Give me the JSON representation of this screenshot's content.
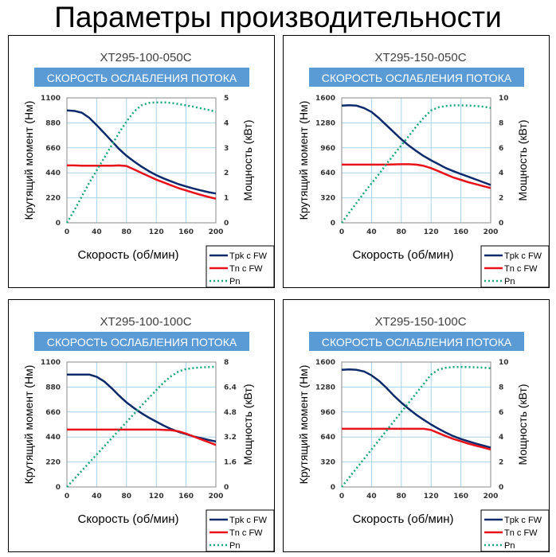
{
  "page_title": "Параметры производительности",
  "colors": {
    "tpk": "#0d2a6b",
    "tn": "#e8121a",
    "pn": "#1aa67a",
    "banner": "#5b9bd5",
    "grid": "#a9d3e8"
  },
  "chart_data": [
    {
      "type": "line",
      "model": "XT295-100-050C",
      "banner": "СКОРОСТЬ ОСЛАБЛЕНИЯ ПОТОКА",
      "xlabel": "Скорость (об/мин)",
      "ylabel": "Крутящий момент (Нм)",
      "y2label": "Мощность (кВт)",
      "xlim": [
        0,
        200
      ],
      "ylim": [
        0,
        1100
      ],
      "y2lim": [
        0,
        5
      ],
      "xticks": [
        "0",
        "40",
        "80",
        "120",
        "160",
        "200"
      ],
      "yticks": [
        "0",
        "220",
        "440",
        "660",
        "880",
        "1100"
      ],
      "y2ticks": [
        "0",
        "1",
        "2",
        "3",
        "4",
        "5"
      ],
      "grid": true,
      "legend_position": "bottom-right",
      "x": [
        0,
        10,
        20,
        30,
        40,
        50,
        60,
        70,
        80,
        90,
        100,
        110,
        120,
        130,
        140,
        150,
        160,
        170,
        180,
        190,
        200
      ],
      "series": [
        {
          "name": "Tpk с FW",
          "axis": "left",
          "values": [
            990,
            985,
            970,
            925,
            860,
            790,
            720,
            650,
            590,
            540,
            495,
            455,
            420,
            390,
            365,
            340,
            320,
            302,
            285,
            270,
            258
          ]
        },
        {
          "name": "Tn с FW",
          "axis": "left",
          "values": [
            505,
            505,
            503,
            503,
            503,
            503,
            503,
            505,
            500,
            470,
            440,
            410,
            380,
            355,
            330,
            305,
            285,
            265,
            245,
            228,
            212
          ]
        },
        {
          "name": "Pn",
          "axis": "right",
          "values": [
            0,
            0.5,
            1.05,
            1.6,
            2.1,
            2.6,
            3.1,
            3.6,
            4.05,
            4.45,
            4.7,
            4.8,
            4.82,
            4.82,
            4.8,
            4.75,
            4.7,
            4.65,
            4.58,
            4.52,
            4.45
          ]
        }
      ]
    },
    {
      "type": "line",
      "model": "XT295-150-050C",
      "banner": "СКОРОСТЬ ОСЛАБЛЕНИЯ ПОТОКА",
      "xlabel": "Скорость (об/мин)",
      "ylabel": "Крутящий момент (Нм)",
      "y2label": "Мощность (кВт)",
      "xlim": [
        0,
        200
      ],
      "ylim": [
        0,
        1600
      ],
      "y2lim": [
        0,
        10
      ],
      "xticks": [
        "0",
        "40",
        "80",
        "120",
        "160",
        "200"
      ],
      "yticks": [
        "0",
        "320",
        "640",
        "960",
        "1280",
        "1600"
      ],
      "y2ticks": [
        "0",
        "2",
        "4",
        "6",
        "8",
        "10"
      ],
      "grid": true,
      "legend_position": "bottom-right",
      "x": [
        0,
        10,
        20,
        30,
        40,
        50,
        60,
        70,
        80,
        90,
        100,
        110,
        120,
        130,
        140,
        150,
        160,
        170,
        180,
        190,
        200
      ],
      "series": [
        {
          "name": "Tpk с FW",
          "axis": "left",
          "values": [
            1500,
            1505,
            1500,
            1470,
            1420,
            1340,
            1250,
            1160,
            1070,
            990,
            920,
            855,
            800,
            750,
            700,
            660,
            625,
            590,
            555,
            520,
            485
          ]
        },
        {
          "name": "Tn с FW",
          "axis": "left",
          "values": [
            745,
            745,
            745,
            745,
            745,
            745,
            745,
            748,
            750,
            750,
            745,
            730,
            700,
            660,
            620,
            580,
            550,
            520,
            495,
            470,
            445
          ]
        },
        {
          "name": "Pn",
          "axis": "right",
          "values": [
            0,
            0.8,
            1.6,
            2.4,
            3.15,
            3.9,
            4.7,
            5.45,
            6.2,
            6.95,
            7.7,
            8.4,
            9.0,
            9.25,
            9.35,
            9.4,
            9.4,
            9.38,
            9.35,
            9.3,
            9.2
          ]
        }
      ]
    },
    {
      "type": "line",
      "model": "XT295-100-100C",
      "banner": "СКОРОСТЬ ОСЛАБЛЕНИЯ ПОТОКА",
      "xlabel": "Скорость (об/мин)",
      "ylabel": "Крутящий момент (Нм)",
      "y2label": "Мощность (кВт)",
      "xlim": [
        0,
        200
      ],
      "ylim": [
        0,
        1100
      ],
      "y2lim": [
        0,
        8
      ],
      "xticks": [
        "0",
        "40",
        "80",
        "120",
        "160",
        "200"
      ],
      "yticks": [
        "0",
        "220",
        "440",
        "660",
        "880",
        "1100"
      ],
      "y2ticks": [
        "0",
        "1.6",
        "3.2",
        "4.8",
        "6.4",
        "8"
      ],
      "grid": true,
      "legend_position": "bottom-right",
      "x": [
        0,
        10,
        20,
        30,
        40,
        50,
        60,
        70,
        80,
        90,
        100,
        110,
        120,
        130,
        140,
        150,
        160,
        170,
        180,
        190,
        200
      ],
      "series": [
        {
          "name": "Tpk с FW",
          "axis": "left",
          "values": [
            990,
            990,
            990,
            990,
            970,
            930,
            870,
            805,
            745,
            695,
            650,
            610,
            575,
            540,
            510,
            485,
            465,
            445,
            430,
            415,
            400
          ]
        },
        {
          "name": "Tn с FW",
          "axis": "left",
          "values": [
            505,
            505,
            505,
            505,
            505,
            505,
            505,
            505,
            505,
            505,
            505,
            505,
            505,
            503,
            500,
            490,
            470,
            445,
            420,
            395,
            370
          ]
        },
        {
          "name": "Pn",
          "axis": "right",
          "values": [
            0,
            0.52,
            1.04,
            1.56,
            2.08,
            2.6,
            3.12,
            3.64,
            4.16,
            4.68,
            5.2,
            5.7,
            6.2,
            6.7,
            7.1,
            7.4,
            7.55,
            7.62,
            7.66,
            7.68,
            7.7
          ]
        }
      ]
    },
    {
      "type": "line",
      "model": "XT295-150-100C",
      "banner": "СКОРОСТЬ ОСЛАБЛЕНИЯ ПОТОКА",
      "xlabel": "Скорость (об/мин)",
      "ylabel": "Крутящий момент (Нм)",
      "y2label": "Мощность (кВт)",
      "xlim": [
        0,
        200
      ],
      "ylim": [
        0,
        1600
      ],
      "y2lim": [
        0,
        10
      ],
      "xticks": [
        "0",
        "40",
        "80",
        "120",
        "160",
        "200"
      ],
      "yticks": [
        "0",
        "320",
        "640",
        "960",
        "1280",
        "1600"
      ],
      "y2ticks": [
        "0",
        "2",
        "4",
        "6",
        "8",
        "10"
      ],
      "grid": true,
      "legend_position": "bottom-right",
      "x": [
        0,
        10,
        20,
        30,
        40,
        50,
        60,
        70,
        80,
        90,
        100,
        110,
        120,
        130,
        140,
        150,
        160,
        170,
        180,
        190,
        200
      ],
      "series": [
        {
          "name": "Tpk с FW",
          "axis": "left",
          "values": [
            1500,
            1505,
            1500,
            1480,
            1430,
            1360,
            1270,
            1170,
            1080,
            1000,
            925,
            860,
            800,
            745,
            695,
            650,
            615,
            585,
            555,
            530,
            505
          ]
        },
        {
          "name": "Tn с FW",
          "axis": "left",
          "values": [
            745,
            745,
            745,
            745,
            745,
            745,
            745,
            745,
            745,
            745,
            745,
            745,
            730,
            690,
            650,
            615,
            585,
            555,
            530,
            505,
            480
          ]
        },
        {
          "name": "Pn",
          "axis": "right",
          "values": [
            0,
            0.75,
            1.5,
            2.25,
            3.0,
            3.75,
            4.5,
            5.25,
            6.0,
            6.75,
            7.5,
            8.25,
            9.0,
            9.4,
            9.55,
            9.6,
            9.6,
            9.6,
            9.58,
            9.55,
            9.5
          ]
        }
      ]
    }
  ]
}
